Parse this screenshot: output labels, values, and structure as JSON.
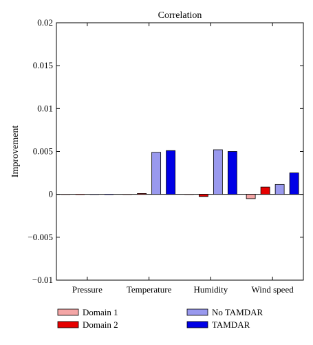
{
  "chart_data": {
    "type": "bar",
    "title": "Correlation",
    "xlabel": "",
    "ylabel": "Improvement",
    "categories": [
      "Pressure",
      "Temperature",
      "Humidity",
      "Wind speed"
    ],
    "ylim": [
      -0.01,
      0.02
    ],
    "yticks": [
      -0.01,
      -0.005,
      0,
      0.005,
      0.01,
      0.015,
      0.02
    ],
    "ytick_labels": [
      "−0.01",
      "−0.005",
      "0",
      "0.005",
      "0.01",
      "0.015",
      "0.02"
    ],
    "grid": false,
    "legend_position": "bottom",
    "series": [
      {
        "name": "Domain 1",
        "color": "#f4a6a6",
        "values": [
          0.0,
          0.0,
          -5e-05,
          -0.0005
        ]
      },
      {
        "name": "Domain 2",
        "color": "#e60000",
        "values": [
          0.0,
          0.0001,
          -0.00025,
          0.00085
        ]
      },
      {
        "name": "No TAMDAR",
        "color": "#9999ee",
        "values": [
          0.0,
          0.0049,
          0.0052,
          0.00115
        ]
      },
      {
        "name": "TAMDAR",
        "color": "#0000e6",
        "values": [
          0.0,
          0.0051,
          0.005,
          0.0025
        ]
      }
    ]
  }
}
